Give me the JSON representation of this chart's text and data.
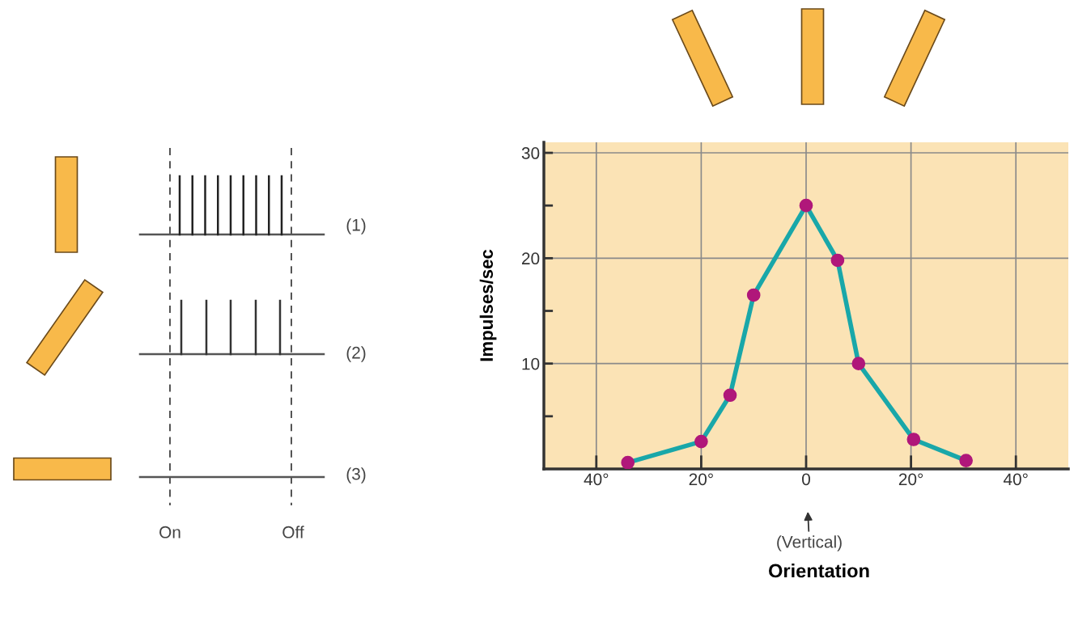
{
  "chart_data": {
    "type": "line",
    "xlabel": "Orientation",
    "ylabel": "Impulses/sec",
    "x": [
      -34,
      -20,
      -14.5,
      -10,
      0,
      6,
      10,
      20.5,
      30.5
    ],
    "series": [
      {
        "color": "#19a7a9",
        "values": [
          0.6,
          2.6,
          7,
          16.5,
          25,
          19.8,
          10,
          2.8,
          0.8
        ]
      }
    ],
    "marker": "circle",
    "xlim": [
      -50,
      50
    ],
    "ylim": [
      0,
      31
    ],
    "xticks": [
      {
        "value": -40,
        "label": "40°"
      },
      {
        "value": -20,
        "label": "20°"
      },
      {
        "value": 0,
        "label": "0"
      },
      {
        "value": 20,
        "label": "20°"
      },
      {
        "value": 40,
        "label": "40°"
      }
    ],
    "yticks": [
      {
        "value": 5,
        "label": null
      },
      10,
      {
        "value": 15,
        "label": null
      },
      20,
      {
        "value": 25,
        "label": null
      },
      30
    ],
    "grid": true,
    "annotations": [
      "(Vertical)",
      "(1)",
      "(2)",
      "(3)",
      "On",
      "Off"
    ]
  }
}
